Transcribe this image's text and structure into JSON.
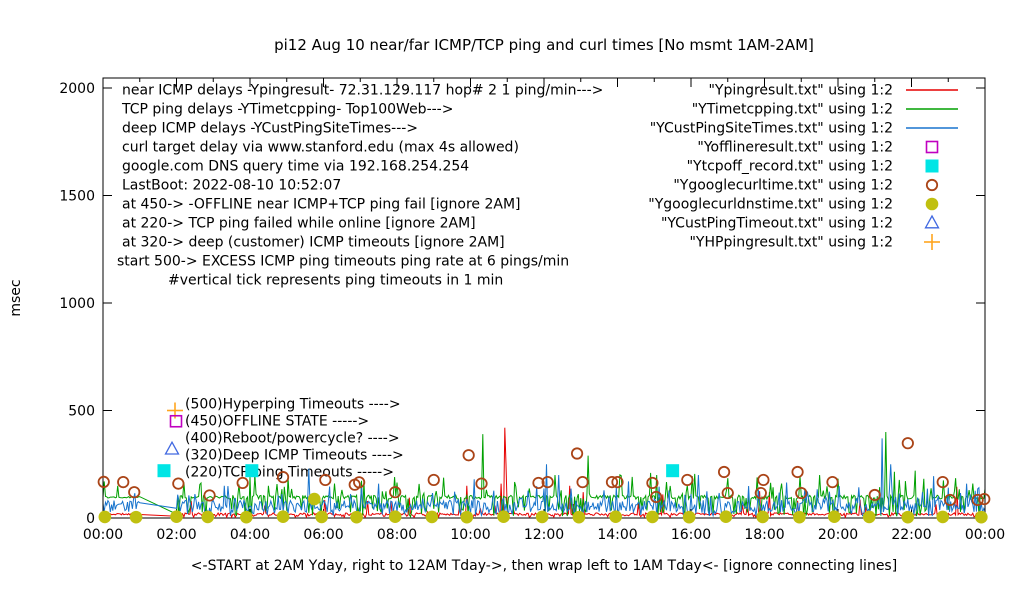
{
  "chart_data": {
    "type": "line+scatter time series",
    "title": "pi12 Aug 10  near/far ICMP/TCP ping and curl times [No msmt 1AM-2AM]",
    "ylabel": "msec",
    "caption": "<-START at 2AM Yday, right to 12AM Tday->, then wrap left to 1AM Tday<- [ignore connecting lines]",
    "ylim": [
      0,
      2000
    ],
    "xlim_hours": [
      0,
      24
    ],
    "grid": "off",
    "y_ticks": [
      0,
      500,
      1000,
      1500,
      2000
    ],
    "x_ticks": [
      "00:00",
      "02:00",
      "04:00",
      "06:00",
      "08:00",
      "10:00",
      "12:00",
      "14:00",
      "16:00",
      "18:00",
      "20:00",
      "22:00",
      "00:00"
    ],
    "measurement_gap_hours": {
      "start": 1.0,
      "end": 2.0
    },
    "annotation_lines": [
      "near ICMP delays -Ypingresult- 72.31.129.117 hop# 2 1 ping/min--->",
      "TCP ping delays -YTimetcpping- Top100Web--->",
      "deep ICMP delays -YCustPingSiteTimes--->",
      "curl target delay via www.stanford.edu (max 4s allowed)",
      "google.com DNS query time via 192.168.254.254",
      "LastBoot: 2022-08-10 10:52:07",
      "at 450-> -OFFLINE near ICMP+TCP ping fail [ignore 2AM]",
      "at 220-> TCP ping failed while online [ignore 2AM]",
      "at 320-> deep (customer) ICMP timeouts [ignore 2AM]",
      "start 500-> EXCESS ICMP ping timeouts ping rate at 6 pings/min",
      "#vertical tick represents ping timeouts in 1 min"
    ],
    "legend": [
      {
        "label": "\"Ypingresult.txt\" using 1:2",
        "marker": "line",
        "color": "#e60000"
      },
      {
        "label": "\"YTimetcpping.txt\" using 1:2",
        "marker": "line",
        "color": "#00a000"
      },
      {
        "label": "\"YCustPingSiteTimes.txt\" using 1:2",
        "marker": "line",
        "color": "#1874cd"
      },
      {
        "label": "\"Yofflineresult.txt\" using 1:2",
        "marker": "open-square",
        "color": "#c000c0"
      },
      {
        "label": "\"Ytcpoff_record.txt\" using 1:2",
        "marker": "filled-square",
        "color": "#00e5e5"
      },
      {
        "label": "\"Ygooglecurltime.txt\" using 1:2",
        "marker": "open-circle",
        "color": "#aa4417"
      },
      {
        "label": "\"Ygooglecurldnstime.txt\" using 1:2",
        "marker": "filled-circle",
        "color": "#c0c010"
      },
      {
        "label": "\"YCustPingTimeout.txt\" using 1:2",
        "marker": "open-triangle",
        "color": "#4169e1"
      },
      {
        "label": "\"YHPpingresult.txt\" using 1:2",
        "marker": "plus",
        "color": "#ffa51e"
      }
    ],
    "value_labels": [
      {
        "value": 500,
        "marker": "plus",
        "color": "#ffa51e",
        "text": "(500)Hyperping Timeouts ---->"
      },
      {
        "value": 450,
        "marker": "open-square",
        "color": "#c000c0",
        "text": "(450)OFFLINE STATE ----->"
      },
      {
        "value": 400,
        "marker": "none",
        "color": "#000000",
        "text": "(400)Reboot/powercycle? ---->"
      },
      {
        "value": 320,
        "marker": "open-triangle",
        "color": "#4169e1",
        "text": "(320)Deep ICMP Timeouts ---->"
      },
      {
        "value": 220,
        "marker": "filled-square",
        "color": "#00e5e5",
        "text": "(220)TCP ping Timeouts ----->"
      }
    ],
    "line_series": [
      {
        "name": "Ypingresult.txt",
        "color": "#e60000",
        "seed": 11,
        "baseline": 18,
        "jitter": 6,
        "up_rate": 0.03,
        "up_max": 70,
        "down_rate": 0.1,
        "down_min": 3,
        "calm_before": 1.0,
        "spikes": [
          [
            8.35,
            95
          ],
          [
            9.9,
            150
          ],
          [
            10.85,
            160
          ],
          [
            10.92,
            420
          ],
          [
            10.97,
            250
          ],
          [
            12.7,
            150
          ],
          [
            13.05,
            120
          ],
          [
            15.25,
            110
          ],
          [
            17.85,
            125
          ],
          [
            18.15,
            120
          ],
          [
            20.6,
            85
          ],
          [
            23.25,
            145
          ]
        ]
      },
      {
        "name": "YTimetcpping.txt",
        "color": "#00a000",
        "seed": 22,
        "baseline": 97,
        "jitter": 9,
        "up_rate": 0.1,
        "up_max": 110,
        "down_rate": 0.22,
        "down_min": 4,
        "calm_before": 1.0,
        "spikes": [
          [
            0.03,
            170
          ],
          [
            0.4,
            150
          ],
          [
            2.0,
            18
          ],
          [
            4.5,
            150
          ],
          [
            6.3,
            160
          ],
          [
            7.1,
            170
          ],
          [
            8.0,
            165
          ],
          [
            10.35,
            390
          ],
          [
            12.3,
            200
          ],
          [
            13.2,
            290
          ],
          [
            14.9,
            210
          ],
          [
            15.05,
            200
          ],
          [
            16.1,
            205
          ],
          [
            17.0,
            185
          ],
          [
            19.5,
            200
          ],
          [
            21.3,
            400
          ],
          [
            21.55,
            215
          ],
          [
            22.1,
            220
          ],
          [
            23.2,
            185
          ]
        ]
      },
      {
        "name": "YCustPingSiteTimes.txt",
        "color": "#1874cd",
        "seed": 33,
        "baseline": 55,
        "jitter": 28,
        "up_rate": 0.14,
        "up_max": 95,
        "down_rate": 0.1,
        "down_min": 8,
        "calm_before": 0,
        "spikes": [
          [
            2.0,
            45
          ],
          [
            3.3,
            150
          ],
          [
            5.6,
            230
          ],
          [
            7.5,
            160
          ],
          [
            10.1,
            180
          ],
          [
            12.05,
            250
          ],
          [
            12.4,
            200
          ],
          [
            14.3,
            170
          ],
          [
            16.2,
            200
          ],
          [
            18.6,
            165
          ],
          [
            21.2,
            370
          ],
          [
            21.45,
            250
          ],
          [
            22.6,
            195
          ],
          [
            23.5,
            160
          ]
        ]
      }
    ],
    "scatter_series": [
      {
        "name": "Yofflineresult.txt",
        "marker": "open-square",
        "color": "#c000c0",
        "points": []
      },
      {
        "name": "Ytcpoff_record.txt",
        "marker": "filled-square",
        "color": "#00e5e5",
        "points": [
          [
            4.05,
            220
          ],
          [
            15.5,
            220
          ]
        ]
      },
      {
        "name": "Ygooglecurltime.txt",
        "marker": "open-circle",
        "color": "#aa4417",
        "points": [
          [
            0.02,
            168
          ],
          [
            0.55,
            167
          ],
          [
            0.85,
            120
          ],
          [
            2.05,
            160
          ],
          [
            2.9,
            105
          ],
          [
            3.8,
            163
          ],
          [
            4.9,
            190
          ],
          [
            6.05,
            177
          ],
          [
            6.85,
            155
          ],
          [
            6.97,
            166
          ],
          [
            7.95,
            120
          ],
          [
            9.0,
            177
          ],
          [
            9.95,
            292
          ],
          [
            10.3,
            160
          ],
          [
            11.85,
            163
          ],
          [
            12.1,
            167
          ],
          [
            12.9,
            300
          ],
          [
            13.05,
            167
          ],
          [
            13.85,
            167
          ],
          [
            14.0,
            167
          ],
          [
            14.95,
            163
          ],
          [
            15.05,
            98
          ],
          [
            15.9,
            177
          ],
          [
            16.9,
            214
          ],
          [
            17.0,
            116
          ],
          [
            17.9,
            116
          ],
          [
            17.97,
            177
          ],
          [
            18.9,
            214
          ],
          [
            19.0,
            116
          ],
          [
            19.85,
            167
          ],
          [
            21.0,
            107
          ],
          [
            21.9,
            348
          ],
          [
            22.85,
            167
          ],
          [
            23.05,
            84
          ],
          [
            23.8,
            84
          ],
          [
            23.98,
            88
          ]
        ]
      },
      {
        "name": "Ygooglecurldnstime.txt",
        "marker": "filled-circle",
        "color": "#c0c010",
        "points": [
          [
            0.05,
            5
          ],
          [
            0.9,
            4
          ],
          [
            2.0,
            6
          ],
          [
            2.85,
            5
          ],
          [
            3.9,
            4
          ],
          [
            4.9,
            6
          ],
          [
            5.75,
            88
          ],
          [
            5.95,
            5
          ],
          [
            6.9,
            4
          ],
          [
            7.95,
            6
          ],
          [
            8.95,
            5
          ],
          [
            9.9,
            4
          ],
          [
            10.9,
            6
          ],
          [
            11.95,
            5
          ],
          [
            12.95,
            4
          ],
          [
            13.95,
            6
          ],
          [
            14.95,
            5
          ],
          [
            15.95,
            4
          ],
          [
            16.95,
            6
          ],
          [
            17.95,
            5
          ],
          [
            18.95,
            4
          ],
          [
            19.9,
            6
          ],
          [
            20.85,
            5
          ],
          [
            21.9,
            4
          ],
          [
            22.85,
            5
          ],
          [
            23.9,
            4
          ]
        ]
      },
      {
        "name": "YCustPingTimeout.txt",
        "marker": "open-triangle",
        "color": "#4169e1",
        "points": []
      },
      {
        "name": "YHPpingresult.txt",
        "marker": "plus",
        "color": "#ffa51e",
        "points": []
      }
    ]
  }
}
